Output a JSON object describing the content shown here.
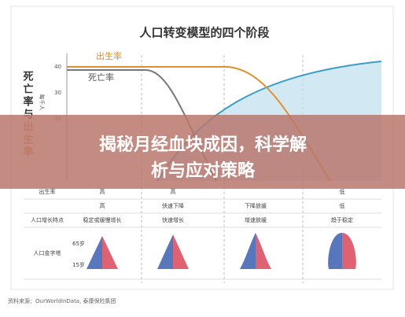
{
  "chart": {
    "title": "人口转变模型的四个阶段",
    "y_label": "死亡率与出生率",
    "y_unit": "每千人",
    "y_ticks": [
      "40",
      "30",
      "20"
    ],
    "legend": [
      "出生率",
      "死亡率"
    ]
  },
  "banner": {
    "lines": [
      "揭秘月经血块成因，科学解",
      "析与应对策略"
    ]
  },
  "table": {
    "rows": [
      {
        "label": "出生率",
        "cells": [
          "高",
          "高",
          null,
          "低"
        ]
      },
      {
        "label": null,
        "cells": [
          "高",
          "快速下降",
          "下降放缓",
          "低"
        ]
      },
      {
        "label": "人口增长特点",
        "cells": [
          "稳定或缓慢增长",
          "快速增长",
          "增速放缓",
          "趋于稳定"
        ]
      }
    ],
    "pyramid_label": "人口金字塔",
    "ages": [
      "65岁",
      "15岁"
    ]
  },
  "source": "资料来源：OurWorldInData, 泰康保险集团"
}
